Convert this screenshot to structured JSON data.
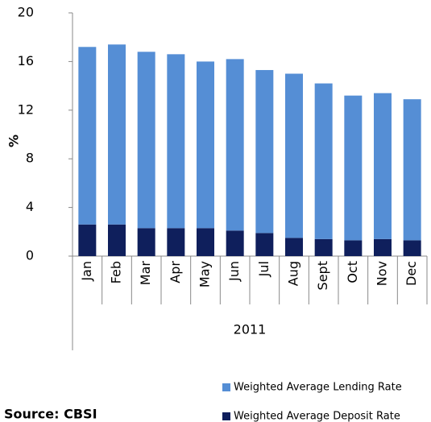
{
  "chart_data": {
    "type": "stacked_bar",
    "categories": [
      "Jan",
      "Feb",
      "Mar",
      "Apr",
      "May",
      "Jun",
      "Jul",
      "Aug",
      "Sept",
      "Oct",
      "Nov",
      "Dec"
    ],
    "x_group_label": "2011",
    "y_label": "%",
    "source": "Source: CBSI",
    "series": [
      {
        "name": "Weighted Average Deposit Rate",
        "color": "#0f1f5c",
        "values": [
          2.6,
          2.6,
          2.3,
          2.3,
          2.3,
          2.1,
          1.9,
          1.5,
          1.4,
          1.3,
          1.4,
          1.3
        ]
      },
      {
        "name": "Weighted Average Lending Rate",
        "color": "#558ed5",
        "values": [
          14.6,
          14.8,
          14.5,
          14.3,
          13.7,
          14.1,
          13.4,
          13.5,
          12.8,
          11.9,
          12.0,
          11.6
        ]
      }
    ],
    "ylim": [
      0,
      20
    ],
    "yticks": [
      0,
      4,
      8,
      12,
      16,
      20
    ],
    "grid": false
  }
}
